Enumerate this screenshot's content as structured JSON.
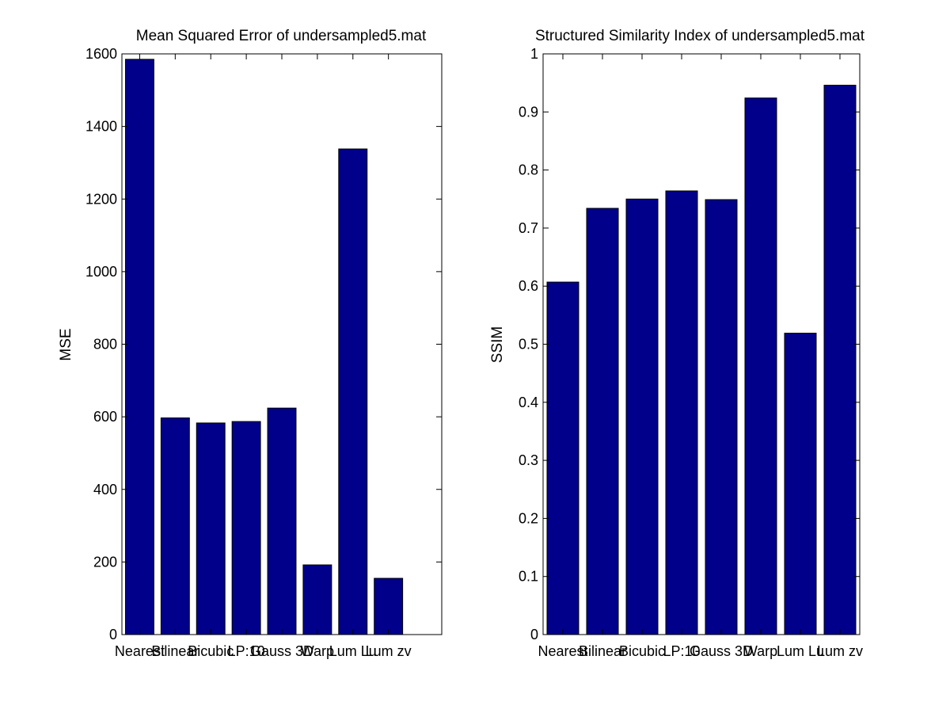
{
  "chart_data": [
    {
      "type": "bar",
      "title": "Mean Squared Error of undersampled5.mat",
      "xlabel": "",
      "ylabel": "MSE",
      "categories": [
        "Nearest",
        "Bilinear",
        "Bicubic",
        "LP:10",
        "Gauss 3D",
        "Warp",
        "Lum Lu",
        "Lum zv"
      ],
      "values": [
        1585,
        597,
        583,
        587,
        624,
        192,
        1338,
        155
      ],
      "ylim": [
        0,
        1600
      ],
      "xlim": [
        0.5,
        9.5
      ],
      "yticks": [
        "0",
        "200",
        "400",
        "600",
        "800",
        "1000",
        "1200",
        "1400",
        "1600"
      ],
      "grid": false,
      "bar_color": "#00008b"
    },
    {
      "type": "bar",
      "title": "Structured Similarity Index of undersampled5.mat",
      "xlabel": "",
      "ylabel": "SSIM",
      "categories": [
        "Nearest",
        "Bilinear",
        "Bicubic",
        "LP:10",
        "Gauss 3D",
        "Warp",
        "Lum Lu",
        "Lum zv"
      ],
      "values": [
        0.607,
        0.734,
        0.75,
        0.764,
        0.749,
        0.924,
        0.519,
        0.946
      ],
      "ylim": [
        0,
        1
      ],
      "xlim": [
        0.5,
        8.5
      ],
      "yticks": [
        "0",
        "0.1",
        "0.2",
        "0.3",
        "0.4",
        "0.5",
        "0.6",
        "0.7",
        "0.8",
        "0.9",
        "1"
      ],
      "grid": false,
      "bar_color": "#00008b"
    }
  ]
}
